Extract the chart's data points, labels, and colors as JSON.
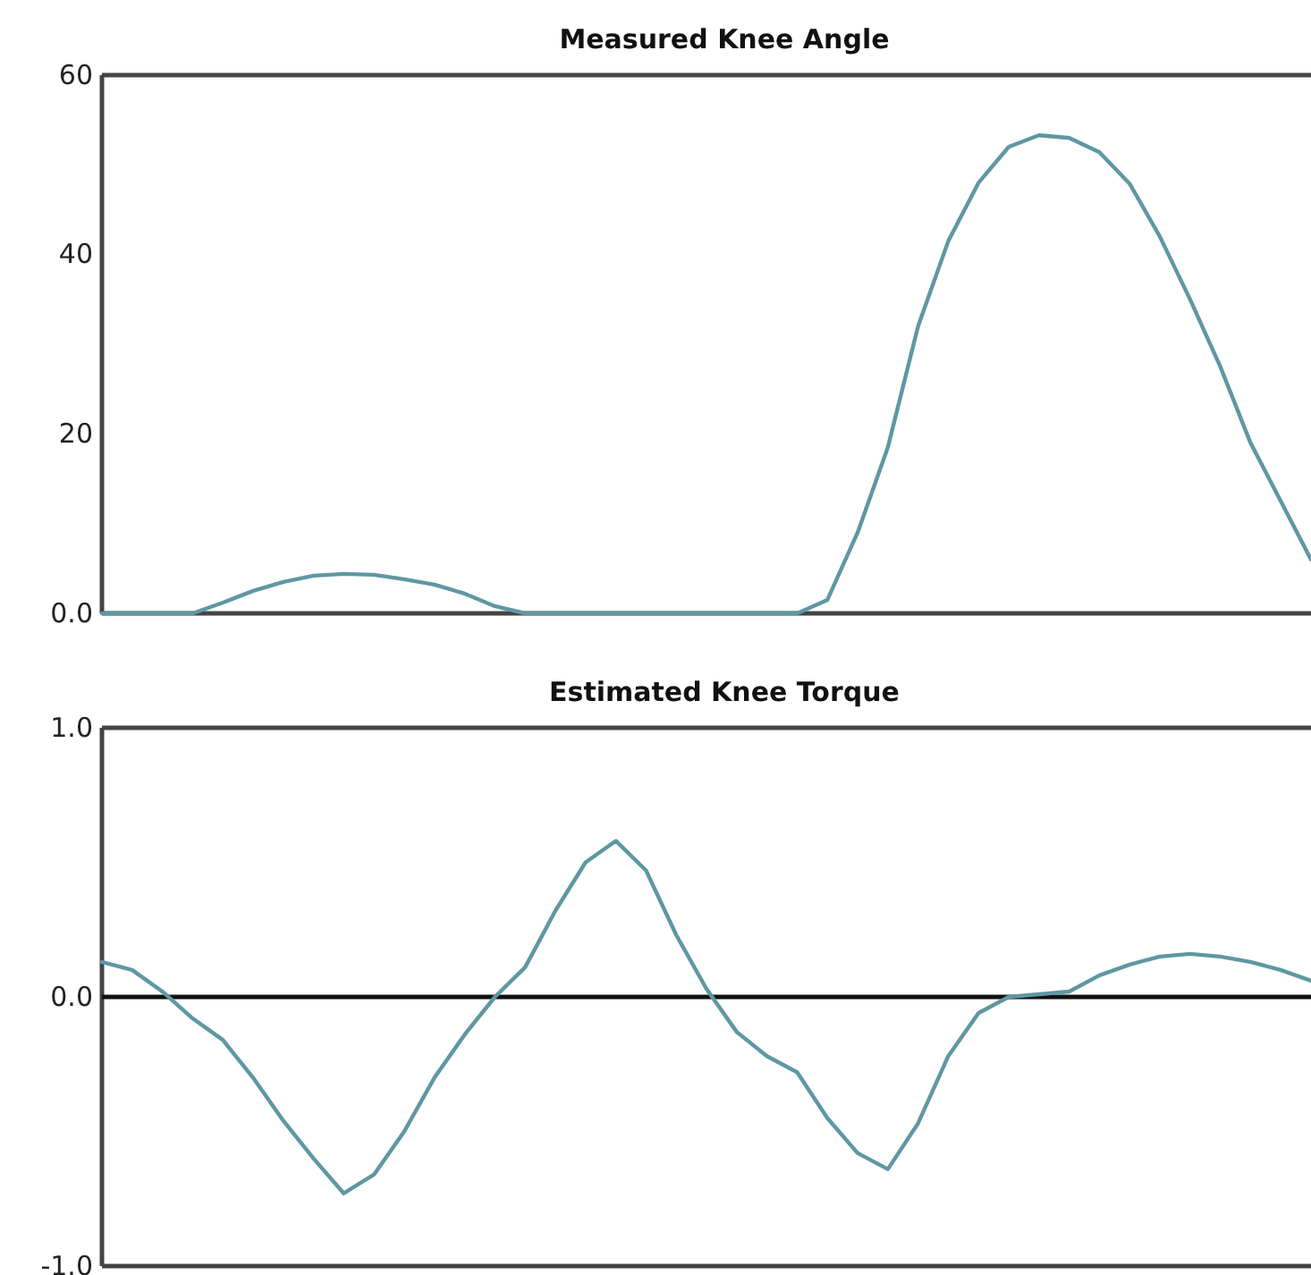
{
  "chart_data": [
    {
      "type": "line",
      "title": "Measured Knee Angle",
      "categories": [
        null,
        null,
        null,
        null,
        null,
        null,
        null,
        null,
        null,
        null,
        null,
        null,
        null,
        null,
        null,
        null,
        null,
        null,
        null,
        null,
        null,
        null,
        null,
        null,
        null,
        null,
        null,
        null,
        null,
        null,
        null,
        null,
        null,
        null,
        null,
        null,
        null,
        null,
        null,
        null,
        null
      ],
      "ylim": [
        0,
        60
      ],
      "yticks": [
        {
          "value": 0,
          "label": "0.0"
        },
        20,
        40,
        60
      ],
      "tick_labels": "y",
      "grid": false,
      "marker": "none",
      "line_style": "solid",
      "series": [
        {
          "color": "#5f97a3",
          "values": [
            0,
            0,
            0,
            0,
            1.2,
            2.5,
            3.5,
            4.2,
            4.4,
            4.3,
            3.8,
            3.2,
            2.2,
            0.8,
            0,
            0,
            0,
            0,
            0,
            0,
            0,
            0,
            0,
            0,
            1.5,
            9,
            18.5,
            32,
            41.5,
            48,
            52,
            53.3,
            53,
            51.4,
            47.9,
            42,
            35,
            27.5,
            19,
            12.5,
            6
          ]
        }
      ]
    },
    {
      "type": "line",
      "title": "Estimated Knee Torque",
      "categories": [
        null,
        null,
        null,
        null,
        null,
        null,
        null,
        null,
        null,
        null,
        null,
        null,
        null,
        null,
        null,
        null,
        null,
        null,
        null,
        null,
        null,
        null,
        null,
        null,
        null,
        null,
        null,
        null,
        null,
        null,
        null,
        null,
        null,
        null,
        null,
        null,
        null,
        null,
        null,
        null,
        null
      ],
      "ylim": [
        -1,
        1
      ],
      "yticks": [
        {
          "value": -1,
          "label": "-1.0"
        },
        {
          "value": 0,
          "label": "0.0"
        },
        {
          "value": 1,
          "label": "1.0"
        }
      ],
      "tick_labels": "y",
      "grid": false,
      "marker": "none",
      "line_style": "solid",
      "ref_lines": [
        {
          "axis": "y",
          "value": 0,
          "color": "#111111"
        }
      ],
      "series": [
        {
          "color": "#5f97a3",
          "values": [
            0.13,
            0.1,
            0.02,
            -0.08,
            -0.16,
            -0.3,
            -0.46,
            -0.6,
            -0.73,
            -0.66,
            -0.5,
            -0.3,
            -0.14,
            0,
            0.11,
            0.32,
            0.5,
            0.58,
            0.47,
            0.23,
            0.03,
            -0.13,
            -0.22,
            -0.28,
            -0.45,
            -0.58,
            -0.64,
            -0.47,
            -0.22,
            -0.06,
            0,
            0.01,
            0.02,
            0.08,
            0.12,
            0.15,
            0.16,
            0.15,
            0.13,
            0.1,
            0.06
          ]
        }
      ]
    }
  ]
}
